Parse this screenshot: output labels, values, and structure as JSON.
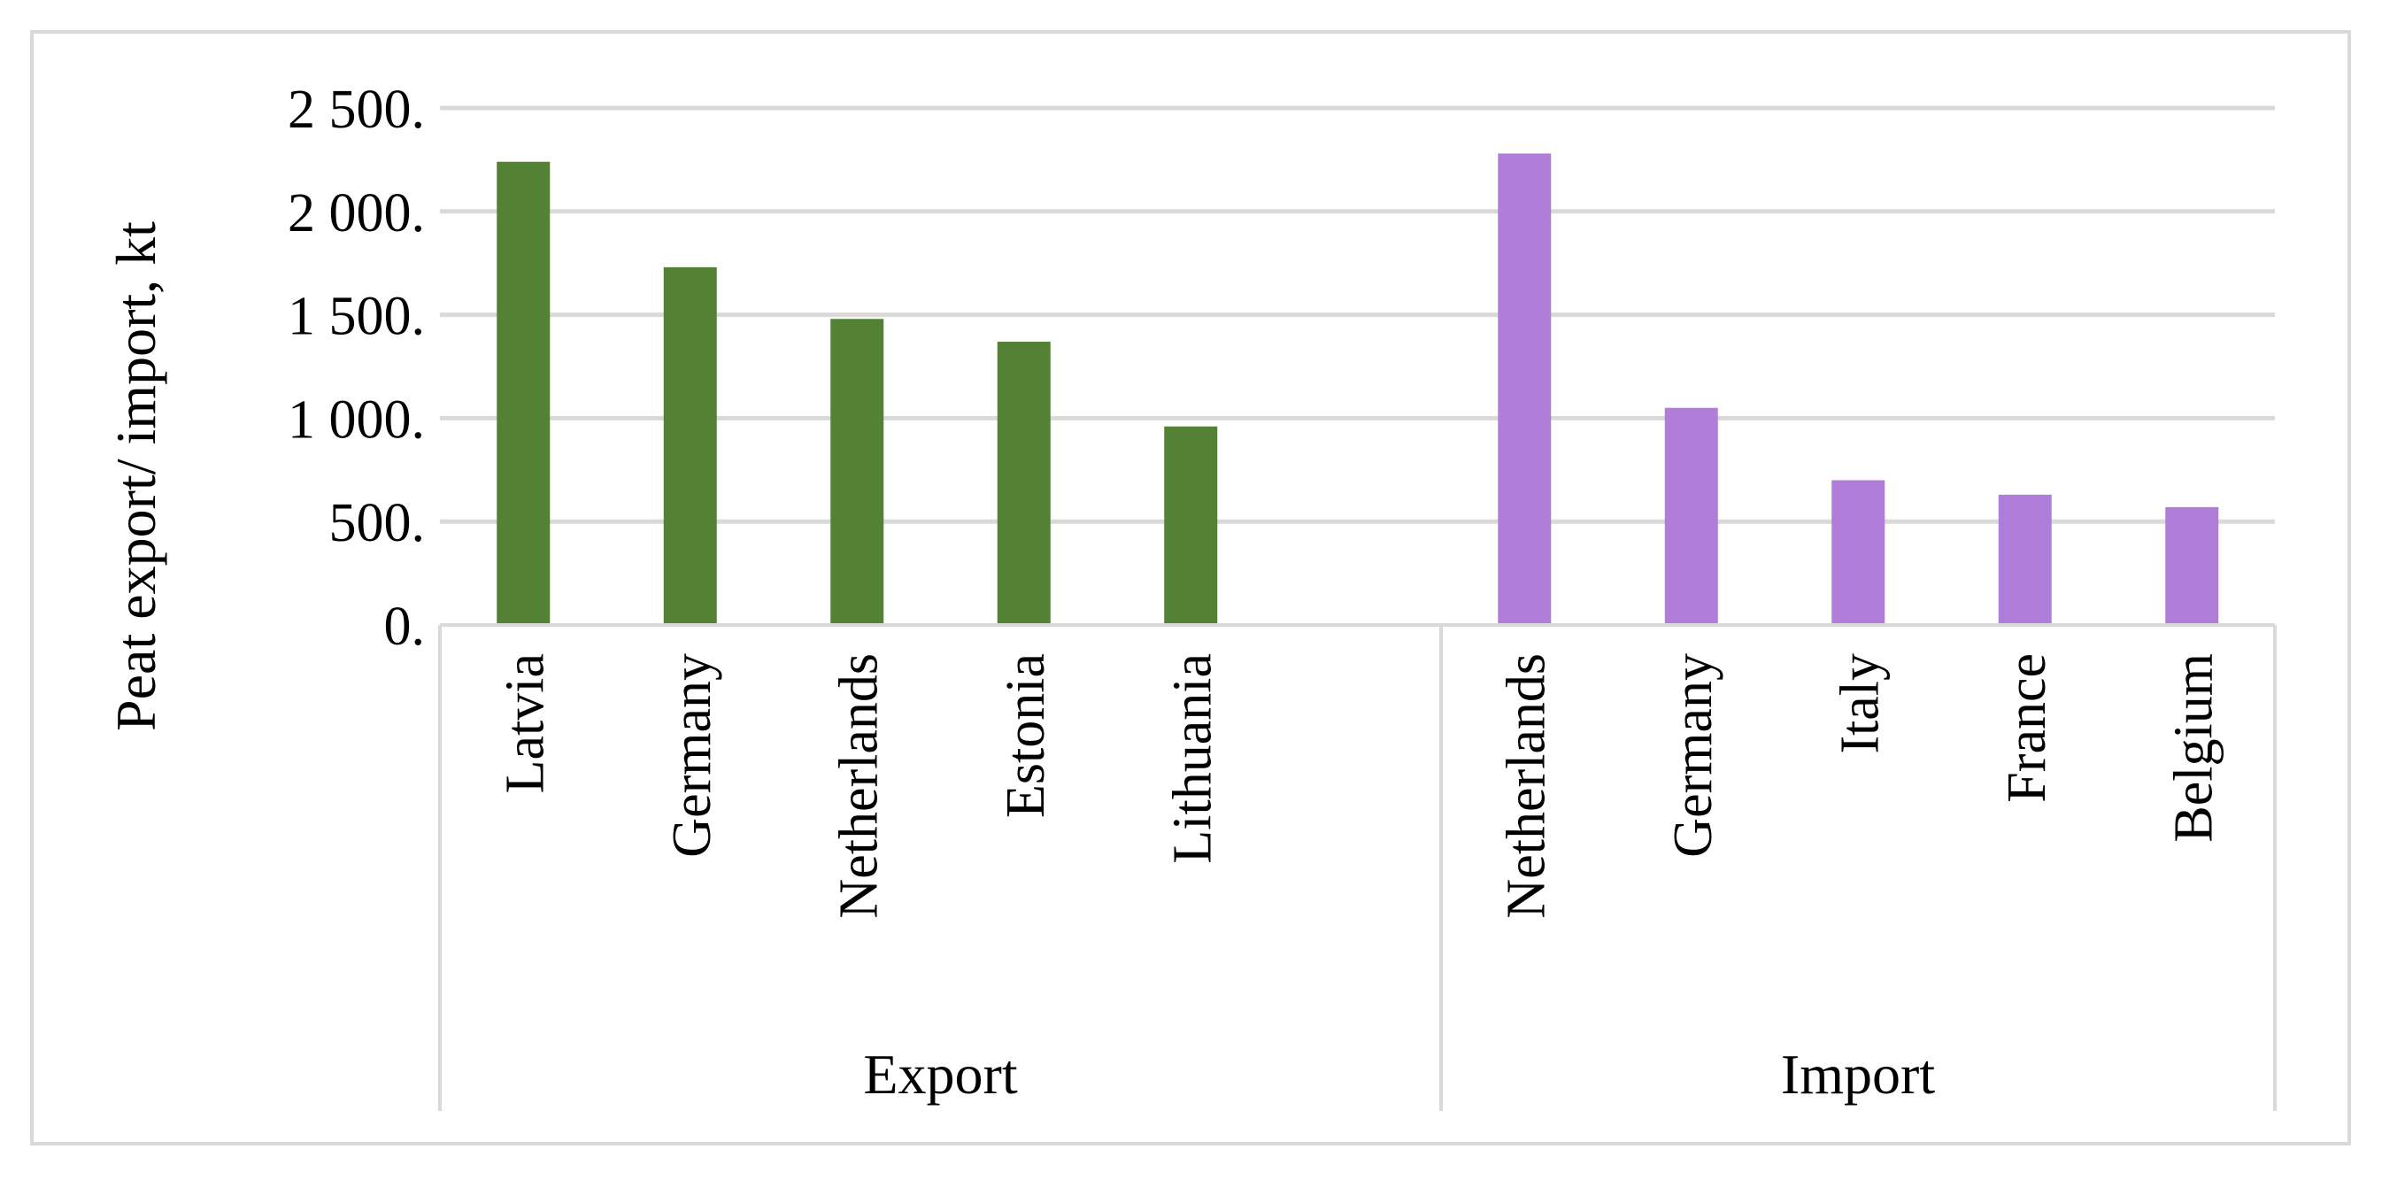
{
  "chart_data": {
    "type": "bar",
    "ylabel": "Peat export/ import, kt",
    "ylim": [
      0,
      2500
    ],
    "y_ticks": [
      0,
      500,
      1000,
      1500,
      2000,
      2500
    ],
    "y_tick_labels": [
      "0.",
      "500.",
      "1 000.",
      "1 500.",
      "2 000.",
      "2 500."
    ],
    "grid": true,
    "legend": "none",
    "groups": [
      {
        "label": "Export",
        "color": "#548235",
        "categories": [
          "Latvia",
          "Germany",
          "Netherlands",
          "Estonia",
          "Lithuania"
        ],
        "values": [
          2240,
          1730,
          1480,
          1370,
          960
        ]
      },
      {
        "label": "Import",
        "color": "#B07ED8",
        "categories": [
          "Netherlands",
          "Germany",
          "Italy",
          "France",
          "Belgium"
        ],
        "values": [
          2280,
          1050,
          700,
          630,
          570
        ]
      }
    ]
  }
}
